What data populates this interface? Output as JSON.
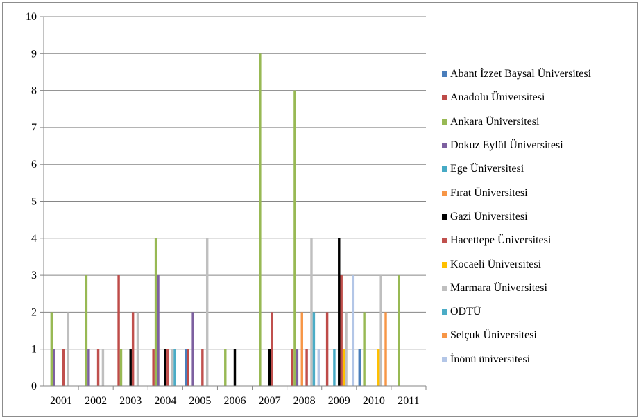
{
  "chart_data": {
    "type": "bar",
    "title": "",
    "xlabel": "",
    "ylabel": "",
    "ylim": [
      0,
      10
    ],
    "yticks": [
      "0",
      "1",
      "2",
      "3",
      "4",
      "5",
      "6",
      "7",
      "8",
      "9",
      "10"
    ],
    "categories": [
      "2001",
      "2002",
      "2003",
      "2004",
      "2005",
      "2006",
      "2007",
      "2008",
      "2009",
      "2010",
      "2011"
    ],
    "grid": "horizontal",
    "legend_position": "right",
    "series": [
      {
        "name": "Abant İzzet Baysal Üniversitesi",
        "color": "#4a7ebb",
        "values": [
          0,
          0,
          0,
          0,
          1,
          0,
          0,
          0,
          0,
          1,
          0
        ]
      },
      {
        "name": "Anadolu Üniversitesi",
        "color": "#be4b48",
        "values": [
          0,
          0,
          3,
          1,
          1,
          0,
          0,
          1,
          2,
          0,
          0
        ]
      },
      {
        "name": "Ankara Üniversitesi",
        "color": "#98b954",
        "values": [
          2,
          3,
          1,
          4,
          0,
          1,
          9,
          8,
          0,
          2,
          3
        ]
      },
      {
        "name": "Dokuz Eylül Üniversitesi",
        "color": "#7d60a0",
        "values": [
          1,
          1,
          0,
          3,
          2,
          0,
          0,
          1,
          0,
          0,
          0
        ]
      },
      {
        "name": "Ege Üniversitesi",
        "color": "#46aac5",
        "values": [
          0,
          0,
          0,
          0,
          0,
          0,
          0,
          0,
          1,
          0,
          0
        ]
      },
      {
        "name": "Fırat Üniversitesi",
        "color": "#f79646",
        "values": [
          0,
          0,
          0,
          0,
          0,
          0,
          0,
          2,
          0,
          0,
          0
        ]
      },
      {
        "name": "Gazi Üniversitesi",
        "color": "#000000",
        "values": [
          0,
          0,
          1,
          1,
          0,
          1,
          1,
          0,
          4,
          0,
          0
        ]
      },
      {
        "name": "Hacettepe Üniversitesi",
        "color": "#c0504d",
        "values": [
          1,
          1,
          2,
          1,
          1,
          0,
          2,
          1,
          3,
          0,
          0
        ]
      },
      {
        "name": "Kocaeli Üniversitesi",
        "color": "#ffc000",
        "values": [
          0,
          0,
          0,
          0,
          0,
          0,
          0,
          0,
          1,
          1,
          0
        ]
      },
      {
        "name": "Marmara Üniversitesi",
        "color": "#bfbfbf",
        "values": [
          2,
          1,
          2,
          1,
          4,
          0,
          0,
          4,
          2,
          3,
          0
        ]
      },
      {
        "name": "ODTÜ",
        "color": "#4bacc6",
        "values": [
          0,
          0,
          0,
          1,
          0,
          0,
          0,
          2,
          0,
          0,
          0
        ]
      },
      {
        "name": "Selçuk Üniversitesi",
        "color": "#f79646",
        "values": [
          0,
          0,
          0,
          0,
          0,
          0,
          0,
          0,
          0,
          2,
          0
        ]
      },
      {
        "name": "İnönü üniversitesi",
        "color": "#b3c6e7",
        "values": [
          0,
          0,
          0,
          0,
          0,
          0,
          0,
          1,
          3,
          0,
          0
        ]
      }
    ]
  }
}
